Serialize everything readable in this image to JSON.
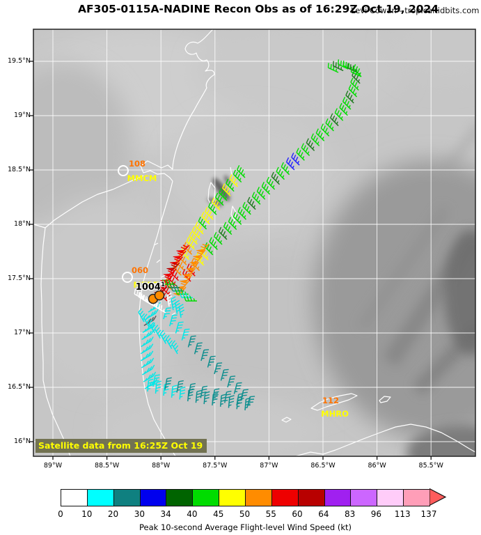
{
  "header": {
    "title": "AF305-0115A-NADINE Recon Obs as of 16:29Z Oct 19, 2024",
    "attribution": "Levi Cowan - tropicaltidbits.com"
  },
  "map": {
    "satellite_note": "Satellite data from 16:25Z Oct 19",
    "y_ticks": [
      "19.5°N",
      "19°N",
      "18.5°N",
      "18°N",
      "17.5°N",
      "17°N",
      "16.5°N",
      "16°N"
    ],
    "x_ticks": [
      "89°W",
      "88.5°W",
      "88°W",
      "87.5°W",
      "87°W",
      "86.5°W",
      "86°W",
      "85.5°W"
    ],
    "stations": [
      {
        "wind_label": "108",
        "code": "MMCM",
        "px": {
          "circle": [
            177,
            245
          ],
          "wind": [
            197,
            235
          ],
          "code": [
            204,
            256
          ]
        }
      },
      {
        "wind_label": "060",
        "code": "MZBZ",
        "px": {
          "circle": [
            183,
            398
          ],
          "wind": [
            201,
            388
          ],
          "code": [
            210,
            409
          ]
        }
      },
      {
        "wind_label": "112",
        "code": "MHRO",
        "px": {
          "wind": [
            475,
            575
          ],
          "code": [
            481,
            594
          ]
        }
      }
    ],
    "center_fix": {
      "pressure_label": "1004",
      "pressure_sup": "1",
      "px": {
        "label": [
          216,
          412
        ],
        "dots": [
          [
            220,
            429
          ],
          [
            229,
            424
          ]
        ]
      },
      "dot_color": "#ff8c00"
    }
  },
  "colorbar": {
    "caption": "Peak 10-second Average Flight-level Wind Speed (kt)",
    "ticks": [
      "0",
      "10",
      "20",
      "30",
      "34",
      "40",
      "45",
      "50",
      "55",
      "60",
      "64",
      "83",
      "96",
      "113",
      "137"
    ],
    "colors": [
      "#ffffff",
      "#00ffff",
      "#0f8080",
      "#0000ee",
      "#006400",
      "#00dc00",
      "#ffff00",
      "#ff8c00",
      "#ee0000",
      "#b80000",
      "#a020f0",
      "#cc66ff",
      "#ffccf9",
      "#ff9eb8"
    ],
    "arrow_color": "#ff5c5c"
  },
  "chart_data": {
    "type": "wind_barb_map",
    "description": "Recon flight-level wind barbs for TS Nadine over satellite imagery",
    "speed_palette": {
      "G": "#00dc00",
      "D": "#1f7a1f",
      "Y": "#ffff00",
      "O": "#ff8c00",
      "R": "#ee0000",
      "M": "#b80000",
      "B": "#2222ff",
      "C": "#00e8e8",
      "T": "#0f8f8f",
      "W": "#ffffff",
      "K": "#555555"
    },
    "tracks": [
      {
        "name": "inbound-ne-leg",
        "angle": 135,
        "pts": [
          [
            519,
            110
          ],
          [
            514,
            136
          ],
          [
            500,
            165
          ],
          [
            474,
            194
          ],
          [
            444,
            224
          ],
          [
            410,
            256
          ],
          [
            377,
            290
          ],
          [
            347,
            322
          ],
          [
            318,
            352
          ],
          [
            295,
            378
          ],
          [
            274,
            404
          ]
        ],
        "seq": "GDGGDGGGDGGGGDGGBBGGDGGGGDGGGGGDGGGYYORR"
      },
      {
        "name": "top-turn",
        "angle": 155,
        "pts": [
          [
            486,
            104
          ],
          [
            500,
            99
          ],
          [
            512,
            102
          ],
          [
            519,
            110
          ]
        ],
        "seq": "GDGGDG"
      },
      {
        "name": "outbound-ne-leg",
        "angle": 135,
        "pts": [
          [
            352,
            255
          ],
          [
            335,
            276
          ],
          [
            317,
            300
          ],
          [
            301,
            322
          ],
          [
            287,
            344
          ],
          [
            273,
            370
          ],
          [
            261,
            394
          ],
          [
            250,
            415
          ],
          [
            240,
            432
          ]
        ],
        "seq": "GGYGYGGYGYYGYYYYOYOOORRORR"
      },
      {
        "name": "center-orange-pennants",
        "angle": 230,
        "pennant": true,
        "pts": [
          [
            300,
            350
          ],
          [
            293,
            362
          ],
          [
            286,
            375
          ],
          [
            279,
            388
          ],
          [
            273,
            400
          ],
          [
            267,
            412
          ]
        ],
        "seq": "OOOOOOOO"
      },
      {
        "name": "center-red-pennants",
        "angle": 225,
        "pennant": true,
        "pts": [
          [
            272,
            352
          ],
          [
            264,
            366
          ],
          [
            256,
            381
          ],
          [
            248,
            396
          ],
          [
            241,
            410
          ],
          [
            235,
            420
          ]
        ],
        "seq": "RRRMRRRMR"
      },
      {
        "name": "center-base-mixed",
        "angle": 180,
        "pts": [
          [
            252,
            408
          ],
          [
            262,
            416
          ],
          [
            273,
            424
          ],
          [
            283,
            432
          ]
        ],
        "seq": "GDTGCG"
      },
      {
        "name": "south-coast-leg",
        "angle": 30,
        "tick": 60,
        "pts": [
          [
            213,
            448
          ],
          [
            206,
            470
          ],
          [
            203,
            492
          ],
          [
            202,
            514
          ],
          [
            204,
            536
          ],
          [
            208,
            558
          ]
        ],
        "seq": "CCKCCCCCCCCC"
      },
      {
        "name": "south-inner-diagonal",
        "angle": 120,
        "pts": [
          [
            207,
            462
          ],
          [
            222,
            478
          ],
          [
            238,
            493
          ],
          [
            255,
            508
          ]
        ],
        "seq": "CCCCCCC"
      },
      {
        "name": "south-outer-diagonal",
        "angle": 75,
        "pts": [
          [
            235,
            458
          ],
          [
            259,
            486
          ],
          [
            284,
            513
          ],
          [
            310,
            539
          ],
          [
            333,
            562
          ],
          [
            355,
            585
          ]
        ],
        "seq": "CCCCTTTTTTTTTT"
      },
      {
        "name": "south-bottom-leg",
        "angle": 85,
        "pts": [
          [
            212,
            562
          ],
          [
            243,
            570
          ],
          [
            274,
            577
          ],
          [
            305,
            582
          ],
          [
            331,
            586
          ],
          [
            352,
            589
          ]
        ],
        "seq": "CCCCCTTTTTTTT"
      },
      {
        "name": "south-bottom-return",
        "angle": 80,
        "pts": [
          [
            220,
            555
          ],
          [
            260,
            565
          ],
          [
            300,
            574
          ],
          [
            340,
            582
          ]
        ],
        "seq": "CTTTTTTT"
      },
      {
        "name": "center-calm-white",
        "angle": 150,
        "pts": [
          [
            207,
            430
          ],
          [
            217,
            437
          ],
          [
            228,
            443
          ],
          [
            238,
            449
          ]
        ],
        "seq": "WWWWWW"
      },
      {
        "name": "center-calm-east",
        "angle": 100,
        "pts": [
          [
            243,
            440
          ],
          [
            252,
            448
          ],
          [
            260,
            456
          ]
        ],
        "seq": "WCCC"
      }
    ]
  }
}
